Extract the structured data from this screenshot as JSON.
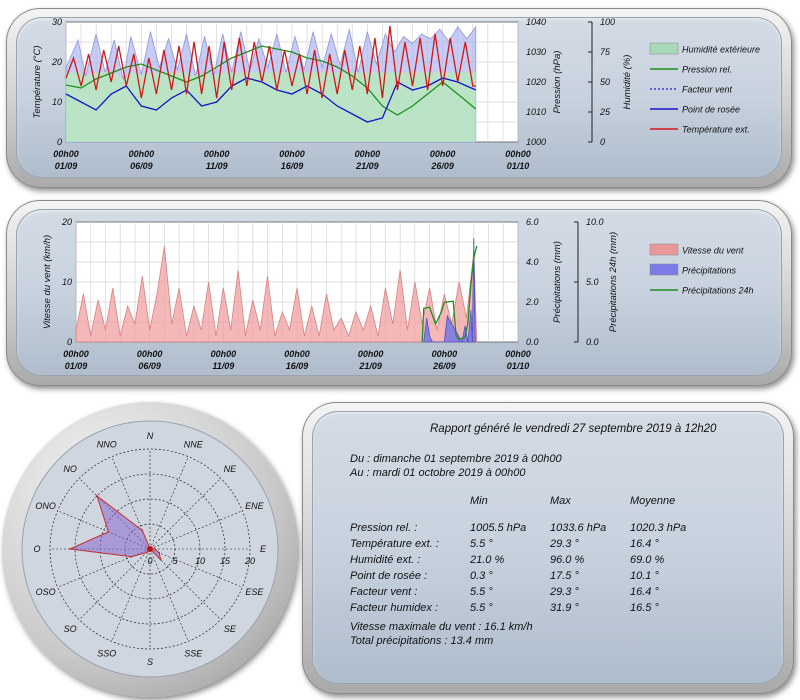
{
  "chart_data": [
    {
      "type": "line",
      "title": "",
      "ylabel": "Température (°C)",
      "ylim": [
        0,
        30
      ],
      "yticks": [
        "0",
        "10",
        "20",
        "30"
      ],
      "y2label": "Pression (hPa)",
      "y2lim": [
        1000,
        1040
      ],
      "y2ticks": [
        "1000",
        "1010",
        "1020",
        "1030",
        "1040"
      ],
      "y3label": "Humidité (%)",
      "y3lim": [
        0,
        100
      ],
      "y3ticks": [
        "0",
        "25",
        "50",
        "75",
        "100"
      ],
      "xticks": [
        {
          "t1": "00h00",
          "t2": "01/09",
          "day": 0
        },
        {
          "t1": "00h00",
          "t2": "06/09",
          "day": 5
        },
        {
          "t1": "00h00",
          "t2": "11/09",
          "day": 10
        },
        {
          "t1": "00h00",
          "t2": "16/09",
          "day": 15
        },
        {
          "t1": "00h00",
          "t2": "21/09",
          "day": 20
        },
        {
          "t1": "00h00",
          "t2": "26/09",
          "day": 25
        },
        {
          "t1": "00h00",
          "t2": "01/10",
          "day": 30
        }
      ],
      "legend_position": "right",
      "series": [
        {
          "name": "Humidité extérieure",
          "color": "#9fa8e8",
          "axis": "humidity",
          "x": [
            0,
            0.8,
            1.3,
            2,
            2.6,
            3.2,
            3.8,
            4.3,
            5,
            5.6,
            6.2,
            6.8,
            7.4,
            8,
            8.6,
            9.2,
            9.8,
            10.4,
            11,
            11.6,
            12.2,
            12.8,
            13.4,
            14,
            14.6,
            15.2,
            15.8,
            16.4,
            17,
            17.6,
            18.2,
            18.8,
            19.4,
            20,
            20.6,
            21.2,
            21.8,
            22.4,
            23,
            23.6,
            24.2,
            24.8,
            25.4,
            26,
            26.6,
            27.2
          ],
          "values": [
            62,
            85,
            55,
            90,
            58,
            85,
            52,
            88,
            56,
            92,
            62,
            86,
            60,
            90,
            55,
            88,
            55,
            90,
            58,
            92,
            60,
            86,
            62,
            90,
            58,
            88,
            60,
            92,
            62,
            90,
            64,
            94,
            58,
            92,
            65,
            90,
            75,
            88,
            82,
            90,
            86,
            94,
            84,
            96,
            86,
            96
          ]
        },
        {
          "name": "Pression rel.",
          "color": "#1f8f1f",
          "axis": "pressure",
          "x": [
            0,
            1,
            2,
            3,
            4,
            5,
            6,
            7,
            8,
            9,
            10,
            11,
            12,
            13,
            14,
            15,
            16,
            17,
            18,
            19,
            20,
            21,
            22,
            23,
            24,
            25,
            26,
            27.2
          ],
          "values": [
            1019,
            1018,
            1021,
            1023,
            1025,
            1026,
            1024,
            1022,
            1020,
            1022,
            1025,
            1028,
            1030,
            1032,
            1031,
            1030,
            1028,
            1027,
            1025,
            1022,
            1018,
            1012,
            1009,
            1012,
            1016,
            1020,
            1016,
            1011
          ]
        },
        {
          "name": "Facteur vent",
          "color": "#1a1ad0",
          "axis": "temperature",
          "x": [],
          "values": []
        },
        {
          "name": "Point de rosée",
          "color": "#1515c8",
          "axis": "temperature",
          "x": [
            0,
            1,
            2,
            3,
            4,
            5,
            6,
            7,
            8,
            9,
            10,
            11,
            12,
            13,
            14,
            15,
            16,
            17,
            18,
            19,
            20,
            21,
            22,
            23,
            24,
            25,
            26,
            27.2
          ],
          "values": [
            12,
            10,
            8,
            12,
            14,
            9,
            8,
            11,
            13,
            9,
            10,
            14,
            16,
            15,
            13,
            12,
            14,
            12,
            9,
            7,
            5,
            6,
            15,
            13,
            14,
            16,
            15,
            13
          ]
        },
        {
          "name": "Température ext.",
          "color": "#d01818",
          "axis": "temperature",
          "x": [
            0,
            0.5,
            1,
            1.5,
            2,
            2.5,
            3,
            3.5,
            4,
            4.5,
            5,
            5.5,
            6,
            6.5,
            7,
            7.5,
            8,
            8.5,
            9,
            9.5,
            10,
            10.5,
            11,
            11.5,
            12,
            12.5,
            13,
            13.5,
            14,
            14.5,
            15,
            15.5,
            16,
            16.5,
            17,
            17.5,
            18,
            18.5,
            19,
            19.5,
            20,
            20.5,
            21,
            21.5,
            22,
            22.5,
            23,
            23.5,
            24,
            24.5,
            25,
            25.5,
            26,
            26.5,
            27,
            27.2
          ],
          "values": [
            16,
            21,
            14,
            22,
            13,
            23,
            15,
            24,
            14,
            22,
            11,
            21,
            12,
            23,
            13,
            24,
            12,
            25,
            12,
            24,
            11,
            25,
            13,
            26,
            14,
            25,
            15,
            24,
            13,
            23,
            14,
            22,
            12,
            23,
            11,
            22,
            12,
            23,
            13,
            24,
            12,
            26,
            11,
            29,
            13,
            25,
            14,
            26,
            13,
            27,
            14,
            26,
            15,
            25,
            14,
            14
          ]
        }
      ]
    },
    {
      "type": "area",
      "title": "",
      "ylabel": "Vitesse du vent (km/h)",
      "ylim": [
        0,
        20
      ],
      "yticks": [
        "0",
        "10",
        "20"
      ],
      "y2label": "Précipitations (mm)",
      "y2lim": [
        0,
        6
      ],
      "y2ticks": [
        "0.0",
        "2.0",
        "4.0",
        "6.0"
      ],
      "y3label": "Précipitations 24h (mm)",
      "y3lim": [
        0,
        10
      ],
      "y3ticks": [
        "0.0",
        "5.0",
        "10.0"
      ],
      "xticks": [
        {
          "t1": "00h00",
          "t2": "01/09",
          "day": 0
        },
        {
          "t1": "00h00",
          "t2": "06/09",
          "day": 5
        },
        {
          "t1": "00h00",
          "t2": "11/09",
          "day": 10
        },
        {
          "t1": "00h00",
          "t2": "16/09",
          "day": 15
        },
        {
          "t1": "00h00",
          "t2": "21/09",
          "day": 20
        },
        {
          "t1": "00h00",
          "t2": "26/09",
          "day": 25
        },
        {
          "t1": "00h00",
          "t2": "01/10",
          "day": 30
        }
      ],
      "legend_position": "right",
      "series": [
        {
          "name": "Vitesse du vent",
          "color": "#ec8f8f",
          "axis": "wind",
          "x": [
            0,
            0.5,
            1,
            1.5,
            2,
            2.5,
            3,
            3.5,
            4,
            4.5,
            5,
            5.5,
            6,
            6.5,
            7,
            7.5,
            8,
            8.5,
            9,
            9.5,
            10,
            10.5,
            11,
            11.5,
            12,
            12.5,
            13,
            13.5,
            14,
            14.5,
            15,
            15.5,
            16,
            16.5,
            17,
            17.5,
            18,
            18.5,
            19,
            19.5,
            20,
            20.5,
            21,
            21.5,
            22,
            22.5,
            23,
            23.5,
            24,
            24.5,
            25,
            25.5,
            26,
            26.5,
            27,
            27.2
          ],
          "values": [
            2,
            8,
            1,
            7,
            2,
            9,
            1,
            6,
            3,
            11,
            2,
            8,
            16,
            3,
            9,
            1,
            6,
            2,
            10,
            1,
            9,
            2,
            12,
            1,
            7,
            2,
            11,
            1,
            5,
            2,
            9,
            1,
            6,
            1,
            8,
            2,
            4,
            1,
            5,
            2,
            6,
            1,
            9,
            3,
            12,
            2,
            10,
            3,
            9,
            2,
            8,
            3,
            10,
            4,
            15,
            0
          ]
        },
        {
          "name": "Précipitations",
          "color": "#7070e6",
          "axis": "rain",
          "x": [
            23.6,
            23.8,
            24,
            24.2,
            25,
            25.2,
            26.2,
            26.4,
            26.6,
            26.8,
            26.9,
            27,
            27.1
          ],
          "values": [
            0,
            1.2,
            0.3,
            0,
            0,
            1.3,
            0,
            0.8,
            0,
            1.6,
            0,
            5.2,
            0
          ]
        },
        {
          "name": "Précipitations 24h",
          "color": "#1f8f1f",
          "axis": "rain24",
          "x": [
            23.5,
            23.6,
            24,
            24.4,
            24.8,
            25,
            25.6,
            25.8,
            26,
            26.4,
            26.6,
            26.8,
            27,
            27.2
          ],
          "values": [
            0,
            2.8,
            2.9,
            1.5,
            2.5,
            3.3,
            3.4,
            0.5,
            0.2,
            0.4,
            1.6,
            4.8,
            7,
            8
          ]
        }
      ]
    },
    {
      "type": "radar",
      "title": "",
      "directions": [
        "N",
        "NNE",
        "NE",
        "ENE",
        "E",
        "ESE",
        "SE",
        "SSE",
        "S",
        "SSO",
        "SO",
        "OSO",
        "O",
        "ONO",
        "NO",
        "NNO"
      ],
      "rlim": [
        0,
        20
      ],
      "rticks": [
        "0",
        "5",
        "10",
        "15",
        "20"
      ],
      "values": [
        0,
        0,
        0,
        0,
        1,
        2,
        3,
        0,
        0,
        0,
        1,
        4,
        16,
        9,
        15,
        4
      ],
      "color": "#8a6ad0"
    }
  ],
  "legend1": [
    "Humidité extérieure",
    "Pression rel.",
    "Facteur vent",
    "Point de rosée",
    "Température ext."
  ],
  "legend2": [
    "Vitesse du vent",
    "Précipitations",
    "Précipitations 24h"
  ],
  "report": {
    "title": "Rapport généré le vendredi 27 septembre 2019 à 12h20",
    "du": "Du : dimanche 01 septembre 2019 à 00h00",
    "au": "Au : mardi 01 octobre 2019 à 00h00",
    "headers": [
      "Min",
      "Max",
      "Moyenne"
    ],
    "rows": [
      {
        "label": "Pression rel. :",
        "min": "1005.5 hPa",
        "max": "1033.6 hPa",
        "avg": "1020.3 hPa"
      },
      {
        "label": "Température ext. :",
        "min": "5.5 °",
        "max": "29.3 °",
        "avg": "16.4 °"
      },
      {
        "label": "Humidité ext. :",
        "min": "21.0 %",
        "max": "96.0 %",
        "avg": "69.0 %"
      },
      {
        "label": "Point de rosée :",
        "min": "0.3 °",
        "max": "17.5 °",
        "avg": "10.1 °"
      },
      {
        "label": "Facteur vent :",
        "min": "5.5 °",
        "max": "29.3 °",
        "avg": "16.4 °"
      },
      {
        "label": "Facteur humidex :",
        "min": "5.5 °",
        "max": "31.9 °",
        "avg": "16.5 °"
      }
    ],
    "wind_max": "Vitesse maximale du vent : 16.1 km/h",
    "rain_total": "Total précipitations : 13.4 mm"
  }
}
